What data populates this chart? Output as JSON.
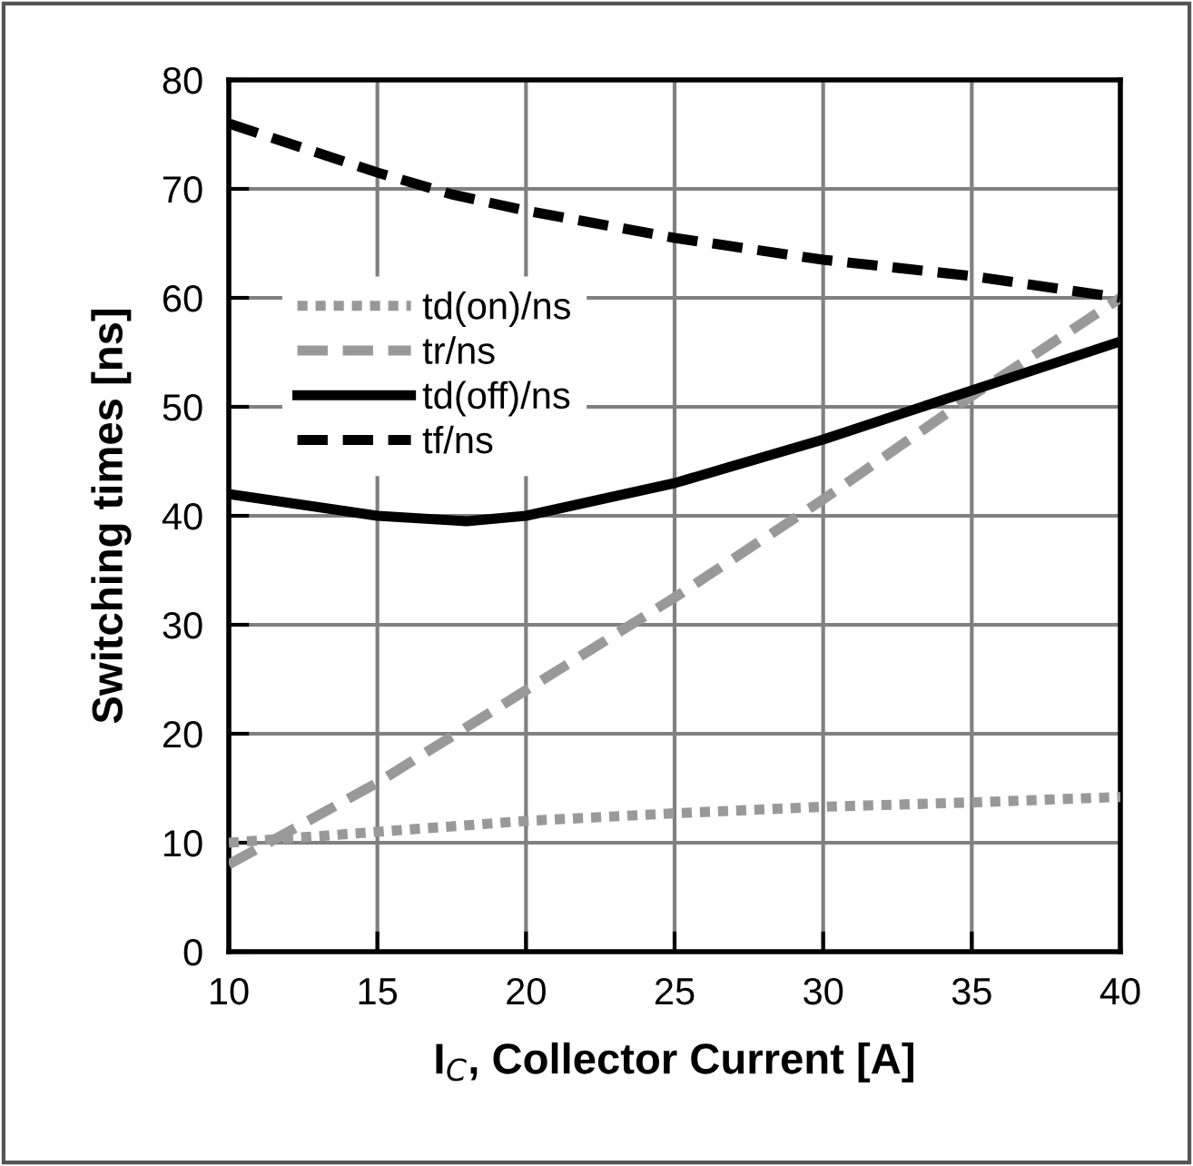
{
  "chart_data": {
    "type": "line",
    "xlabel": "I$_{C}$, Collector Current [A]",
    "ylabel": "Switching times [ns]",
    "xlim": [
      10,
      40
    ],
    "xticks": [
      10,
      15,
      20,
      25,
      30,
      35,
      40
    ],
    "ylim": [
      0,
      80
    ],
    "yticks": [
      0,
      10,
      20,
      30,
      40,
      50,
      60,
      70,
      80
    ],
    "grid": true,
    "legend": "left",
    "marker": "none",
    "series": [
      {
        "name": "td(on)/ns",
        "color": "#999999",
        "line_style": "dotted",
        "x": [
          10,
          15,
          20,
          25,
          30,
          35,
          40
        ],
        "values": [
          10,
          11,
          12,
          12.7,
          13.3,
          13.7,
          14.2
        ]
      },
      {
        "name": "tr/ns",
        "color": "#999999",
        "line_style": "dashed",
        "x": [
          10,
          15,
          20,
          25,
          30,
          35,
          40
        ],
        "values": [
          8,
          15.5,
          24,
          32.5,
          41.5,
          51,
          60
        ]
      },
      {
        "name": "td(off)/ns",
        "color": "#000000",
        "line_style": "solid",
        "x": [
          10,
          12.5,
          15,
          18,
          20,
          25,
          30,
          35,
          40
        ],
        "values": [
          42,
          41,
          40,
          39.5,
          40,
          43,
          47,
          51.5,
          56
        ]
      },
      {
        "name": "tf/ns",
        "color": "#000000",
        "line_style": "dashed",
        "x": [
          10,
          15,
          17.5,
          20,
          25,
          30,
          35,
          40
        ],
        "values": [
          76,
          71.5,
          69.5,
          68,
          65.5,
          63.5,
          62,
          60
        ]
      }
    ]
  }
}
